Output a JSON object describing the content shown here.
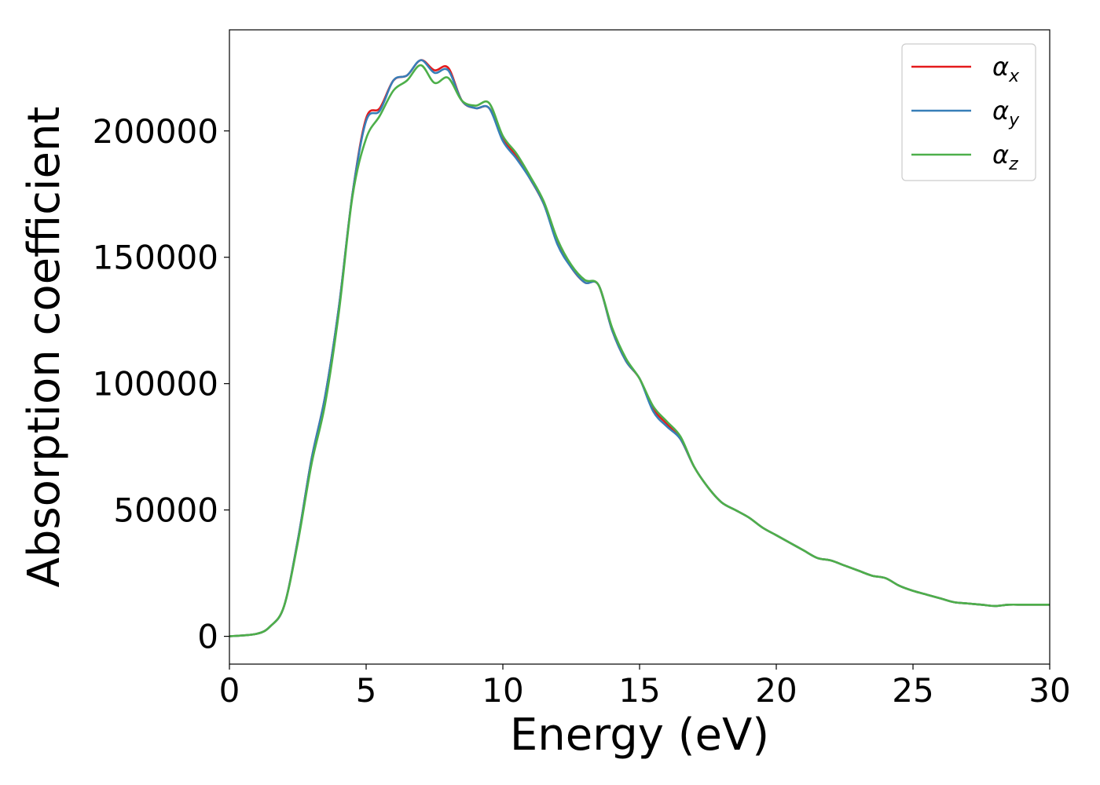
{
  "chart_data": {
    "type": "line",
    "title": "",
    "xlabel": "Energy (eV)",
    "ylabel": "Absorption coefficient",
    "xlim": [
      0,
      30
    ],
    "ylim": [
      -11000,
      240000
    ],
    "xticks": [
      0,
      5,
      10,
      15,
      20,
      25,
      30
    ],
    "yticks": [
      0,
      50000,
      100000,
      150000,
      200000
    ],
    "xtick_labels": [
      "0",
      "5",
      "10",
      "15",
      "20",
      "25",
      "30"
    ],
    "ytick_labels": [
      "0",
      "50000",
      "100000",
      "150000",
      "200000"
    ],
    "grid": false,
    "legend_position": "top-right",
    "x": [
      0,
      1,
      1.5,
      2,
      2.5,
      3,
      3.5,
      4,
      4.5,
      5,
      5.5,
      6,
      6.5,
      7,
      7.5,
      8,
      8.5,
      9,
      9.5,
      10,
      10.5,
      11,
      11.5,
      12,
      12.5,
      13,
      13.5,
      14,
      14.5,
      15,
      15.5,
      16,
      16.5,
      17,
      17.5,
      18,
      18.5,
      19,
      19.5,
      20,
      20.5,
      21,
      21.5,
      22,
      22.5,
      23,
      23.5,
      24,
      24.5,
      25,
      25.5,
      26,
      26.5,
      27,
      27.5,
      28,
      28.5,
      29,
      29.5,
      30
    ],
    "series": [
      {
        "name": "α",
        "subscript": "x",
        "color": "#e41a1c",
        "values": [
          0,
          1000,
          4000,
          12000,
          38000,
          70000,
          95000,
          130000,
          175000,
          205000,
          209000,
          220000,
          222000,
          228000,
          224000,
          225000,
          212000,
          209000,
          209000,
          197000,
          190000,
          181000,
          171000,
          156000,
          146000,
          140000,
          139000,
          121000,
          109000,
          102000,
          90000,
          84000,
          78000,
          67000,
          59000,
          53000,
          50000,
          47000,
          43000,
          40000,
          37000,
          34000,
          31000,
          30000,
          28000,
          26000,
          24000,
          23000,
          20000,
          18000,
          16500,
          15000,
          13500,
          13000,
          12500,
          12000,
          12500,
          12500,
          12500,
          12500
        ]
      },
      {
        "name": "α",
        "subscript": "y",
        "color": "#377eb8",
        "values": [
          0,
          1000,
          4000,
          12000,
          38000,
          70000,
          95000,
          130000,
          175000,
          204000,
          208000,
          220000,
          222000,
          228000,
          223000,
          224000,
          212000,
          209000,
          209000,
          196000,
          189000,
          181000,
          171000,
          155000,
          146000,
          140000,
          139000,
          121000,
          109000,
          102000,
          89000,
          83000,
          78000,
          67000,
          59000,
          53000,
          50000,
          47000,
          43000,
          40000,
          37000,
          34000,
          31000,
          30000,
          28000,
          26000,
          24000,
          23000,
          20000,
          18000,
          16500,
          15000,
          13500,
          13000,
          12500,
          12000,
          12500,
          12500,
          12500,
          12500
        ]
      },
      {
        "name": "α",
        "subscript": "z",
        "color": "#4daf4a",
        "values": [
          0,
          1000,
          4000,
          12000,
          37000,
          68000,
          92000,
          128000,
          174000,
          197000,
          206000,
          216000,
          220000,
          226000,
          219000,
          221000,
          212000,
          210000,
          211000,
          198000,
          191000,
          182000,
          172000,
          157000,
          147000,
          141000,
          139000,
          122000,
          110000,
          102000,
          91000,
          85000,
          79000,
          67000,
          59000,
          53000,
          50000,
          47000,
          43000,
          40000,
          37000,
          34000,
          31000,
          30000,
          28000,
          26000,
          24000,
          23000,
          20000,
          18000,
          16500,
          15000,
          13500,
          13000,
          12500,
          12000,
          12500,
          12500,
          12500,
          12500
        ]
      }
    ]
  }
}
